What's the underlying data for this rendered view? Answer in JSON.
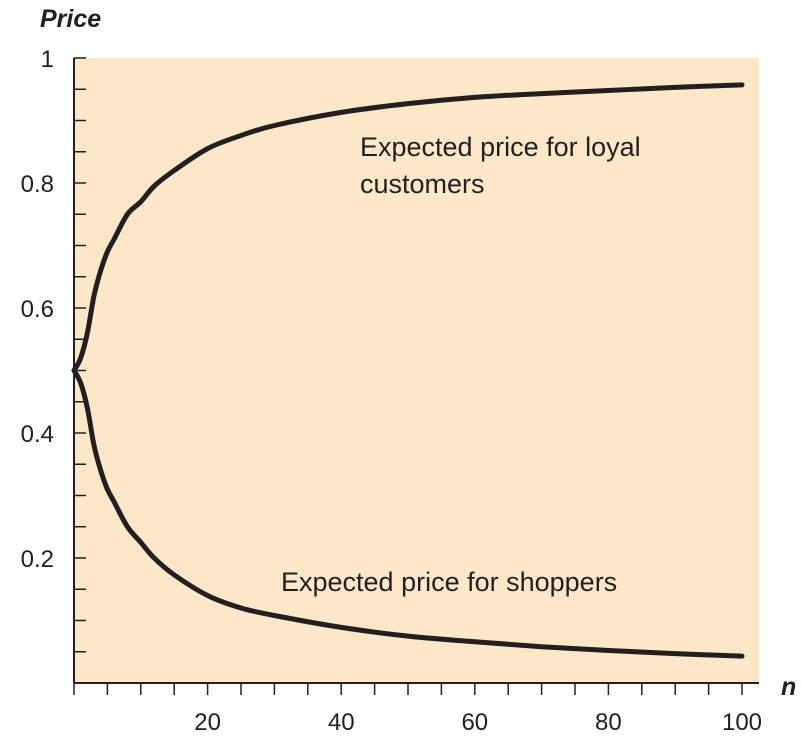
{
  "chart_data": {
    "type": "line",
    "ylabel": "Price",
    "xlabel": "n",
    "xlim": [
      0,
      100
    ],
    "ylim": [
      0,
      1
    ],
    "x_ticks": [
      20,
      40,
      60,
      80,
      100
    ],
    "y_ticks": [
      0.2,
      0.4,
      0.6,
      0.8,
      1
    ],
    "y_tick_labels": [
      "0.2",
      "0.4",
      "0.6",
      "0.8",
      "1"
    ],
    "x_tick_labels": [
      "20",
      "40",
      "60",
      "80",
      "100"
    ],
    "x_minor_step": 5,
    "y_minor_step": 0.05,
    "grid": false,
    "legend": "none",
    "colors": {
      "plot_background": "#fce8c8",
      "line": "#231f20",
      "axis": "#231f20"
    },
    "series": [
      {
        "x": [
          0,
          1,
          2,
          3,
          4,
          5,
          6,
          8,
          10,
          12,
          15,
          20,
          25,
          30,
          40,
          50,
          60,
          70,
          80,
          90,
          100
        ],
        "y": [
          0.5,
          0.52,
          0.56,
          0.62,
          0.66,
          0.69,
          0.71,
          0.75,
          0.77,
          0.795,
          0.82,
          0.855,
          0.876,
          0.892,
          0.913,
          0.927,
          0.937,
          0.943,
          0.948,
          0.953,
          0.957
        ]
      },
      {
        "x": [
          0,
          1,
          2,
          3,
          4,
          5,
          6,
          8,
          10,
          12,
          15,
          20,
          25,
          30,
          40,
          50,
          60,
          70,
          80,
          90,
          100
        ],
        "y": [
          0.5,
          0.48,
          0.44,
          0.38,
          0.34,
          0.31,
          0.29,
          0.25,
          0.225,
          0.2,
          0.173,
          0.14,
          0.12,
          0.108,
          0.089,
          0.075,
          0.066,
          0.058,
          0.052,
          0.047,
          0.043
        ]
      }
    ],
    "annotations": {
      "loyal": [
        "Expected price for loyal",
        "customers"
      ],
      "shoppers": "Expected price for shoppers"
    }
  }
}
